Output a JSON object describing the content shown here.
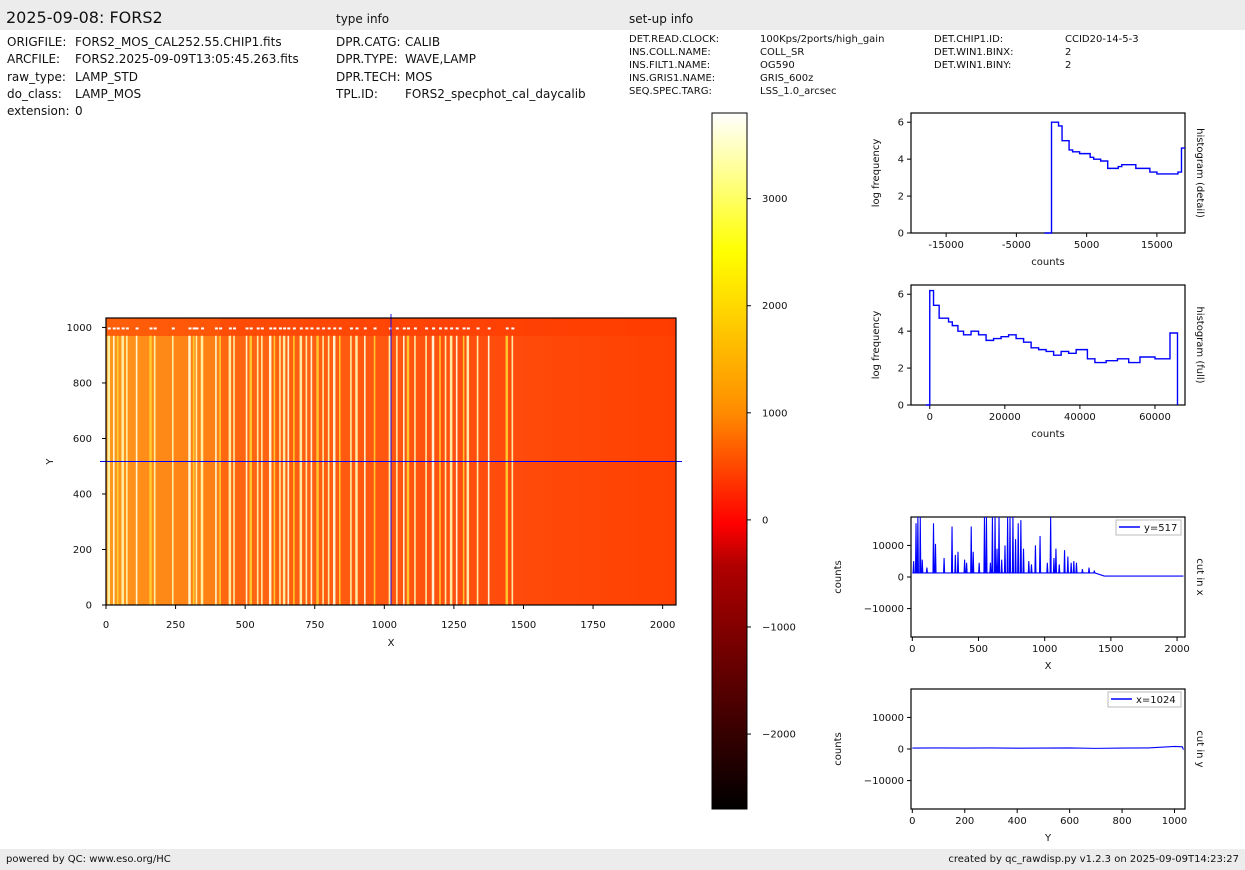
{
  "header": {
    "title": "2025-09-08: FORS2",
    "type_info": "type info",
    "setup_info": "set-up info"
  },
  "file_info": [
    {
      "key": "ORIGFILE:",
      "value": "FORS2_MOS_CAL252.55.CHIP1.fits"
    },
    {
      "key": "ARCFILE:",
      "value": "FORS2.2025-09-09T13:05:45.263.fits"
    },
    {
      "key": "raw_type:",
      "value": "LAMP_STD"
    },
    {
      "key": "do_class:",
      "value": "LAMP_MOS"
    },
    {
      "key": "extension:",
      "value": "0"
    }
  ],
  "type_info": [
    {
      "key": "DPR.CATG:",
      "value": "CALIB"
    },
    {
      "key": "DPR.TYPE:",
      "value": "WAVE,LAMP"
    },
    {
      "key": "DPR.TECH:",
      "value": "MOS"
    },
    {
      "key": "TPL.ID:",
      "value": "FORS2_specphot_cal_daycalib"
    }
  ],
  "setup_info_1": [
    {
      "key": "DET.READ.CLOCK:",
      "value": "100Kps/2ports/high_gain"
    },
    {
      "key": "INS.COLL.NAME:",
      "value": "COLL_SR"
    },
    {
      "key": "INS.FILT1.NAME:",
      "value": "OG590"
    },
    {
      "key": "INS.GRIS1.NAME:",
      "value": "GRIS_600z"
    },
    {
      "key": "SEQ.SPEC.TARG:",
      "value": "LSS_1.0_arcsec"
    }
  ],
  "setup_info_2": [
    {
      "key": "DET.CHIP1.ID:",
      "value": "CCID20-14-5-3"
    },
    {
      "key": "DET.WIN1.BINX:",
      "value": "2"
    },
    {
      "key": "DET.WIN1.BINY:",
      "value": "2"
    }
  ],
  "footer": {
    "left": "powered by QC: www.eso.org/HC",
    "right": "created by qc_rawdisp.py v1.2.3 on 2025-09-09T14:23:27"
  },
  "colors": {
    "line": "#0000ff",
    "bar_bg": "#ececec",
    "image_base": "#ff4500"
  },
  "chart_data": [
    {
      "type": "heatmap",
      "name": "image",
      "xlabel": "X",
      "ylabel": "Y",
      "xlim": [
        0,
        2048
      ],
      "ylim": [
        0,
        1034
      ],
      "xticks": [
        0,
        250,
        500,
        750,
        1000,
        1250,
        1500,
        1750,
        2000
      ],
      "yticks": [
        0,
        200,
        400,
        600,
        800,
        1000
      ],
      "crosshair": {
        "x": 1024,
        "y": 517
      },
      "colormap": "hot",
      "arc_lines_x": [
        10,
        28,
        42,
        60,
        75,
        110,
        160,
        175,
        240,
        300,
        315,
        325,
        345,
        395,
        410,
        445,
        460,
        505,
        520,
        545,
        560,
        590,
        605,
        625,
        640,
        655,
        675,
        700,
        720,
        738,
        760,
        780,
        800,
        820,
        840,
        880,
        900,
        930,
        965,
        1020,
        1045,
        1070,
        1085,
        1110,
        1150,
        1175,
        1200,
        1220,
        1240,
        1260,
        1285,
        1300,
        1335,
        1375,
        1440,
        1460
      ]
    },
    {
      "type": "colorbar",
      "name": "colorbar",
      "range": [
        -2700,
        3800
      ],
      "ticks": [
        -2000,
        -1000,
        0,
        1000,
        2000,
        3000
      ]
    },
    {
      "type": "line",
      "name": "histogram (detail)",
      "xlabel": "counts",
      "ylabel": "log frequency",
      "side_label": "histogram (detail)",
      "xlim": [
        -20000,
        19000
      ],
      "ylim": [
        0,
        6.5
      ],
      "xticks": [
        -15000,
        -5000,
        5000,
        15000
      ],
      "xtick_labels": [
        "-15000",
        "-5000",
        "5000",
        "15000"
      ],
      "yticks": [
        0,
        2,
        4,
        6
      ],
      "steps_x": [
        -1000,
        0,
        1000,
        1500,
        2500,
        3000,
        4000,
        5500,
        6000,
        7000,
        8000,
        9500,
        10000,
        11000,
        12000,
        13000,
        14000,
        15000,
        16000,
        17000,
        18000,
        18500,
        19000
      ],
      "steps_y": [
        0,
        6.0,
        5.8,
        5.0,
        4.5,
        4.4,
        4.3,
        4.1,
        4.0,
        3.9,
        3.5,
        3.6,
        3.7,
        3.7,
        3.5,
        3.5,
        3.3,
        3.2,
        3.2,
        3.2,
        3.3,
        4.6,
        4.6
      ]
    },
    {
      "type": "line",
      "name": "histogram (full)",
      "xlabel": "counts",
      "ylabel": "log frequency",
      "side_label": "histogram (full)",
      "xlim": [
        -5000,
        68000
      ],
      "ylim": [
        0,
        6.5
      ],
      "xticks": [
        0,
        20000,
        40000,
        60000
      ],
      "xtick_labels": [
        "0",
        "20000",
        "40000",
        "60000"
      ],
      "yticks": [
        0,
        2,
        4,
        6
      ],
      "steps_x": [
        -1000,
        0,
        1000,
        2500,
        5000,
        6000,
        7500,
        9000,
        11000,
        13000,
        15000,
        17000,
        19000,
        21000,
        23000,
        25000,
        27000,
        29000,
        31000,
        33000,
        35000,
        37000,
        39000,
        42000,
        44000,
        47000,
        50000,
        53000,
        56000,
        60000,
        64000,
        66000
      ],
      "steps_y": [
        0,
        6.2,
        5.4,
        4.7,
        4.5,
        4.3,
        4.0,
        3.8,
        4.0,
        3.8,
        3.5,
        3.6,
        3.7,
        3.8,
        3.6,
        3.4,
        3.1,
        3.0,
        2.9,
        2.7,
        2.9,
        2.8,
        3.0,
        2.5,
        2.3,
        2.4,
        2.5,
        2.3,
        2.6,
        2.5,
        3.9,
        0
      ]
    },
    {
      "type": "line",
      "name": "cut in x",
      "xlabel": "X",
      "ylabel": "counts",
      "side_label": "cut in x",
      "legend": "y=517",
      "xlim": [
        -10,
        2060
      ],
      "ylim": [
        -19000,
        19000
      ],
      "xticks": [
        0,
        500,
        1000,
        1500,
        2000
      ],
      "yticks": [
        -10000,
        0,
        10000
      ],
      "baseline": 1300,
      "peaks": [
        [
          10,
          5000
        ],
        [
          28,
          17000
        ],
        [
          42,
          19000
        ],
        [
          60,
          19000
        ],
        [
          75,
          5500
        ],
        [
          110,
          3000
        ],
        [
          160,
          17000
        ],
        [
          175,
          10500
        ],
        [
          240,
          6000
        ],
        [
          300,
          16000
        ],
        [
          325,
          7000
        ],
        [
          345,
          8000
        ],
        [
          395,
          5500
        ],
        [
          410,
          4500
        ],
        [
          445,
          16000
        ],
        [
          460,
          8000
        ],
        [
          505,
          4500
        ],
        [
          545,
          19000
        ],
        [
          560,
          19000
        ],
        [
          590,
          4500
        ],
        [
          605,
          19000
        ],
        [
          625,
          19000
        ],
        [
          640,
          9000
        ],
        [
          655,
          19000
        ],
        [
          675,
          5500
        ],
        [
          700,
          10000
        ],
        [
          720,
          19000
        ],
        [
          738,
          19000
        ],
        [
          760,
          19000
        ],
        [
          780,
          12000
        ],
        [
          800,
          17000
        ],
        [
          820,
          18000
        ],
        [
          840,
          9000
        ],
        [
          880,
          5000
        ],
        [
          900,
          4000
        ],
        [
          930,
          10000
        ],
        [
          965,
          13000
        ],
        [
          1020,
          4500
        ],
        [
          1045,
          19000
        ],
        [
          1070,
          6000
        ],
        [
          1085,
          9000
        ],
        [
          1110,
          4000
        ],
        [
          1150,
          8500
        ],
        [
          1175,
          6500
        ],
        [
          1200,
          4500
        ],
        [
          1220,
          5000
        ],
        [
          1240,
          4500
        ],
        [
          1285,
          2500
        ],
        [
          1335,
          3000
        ],
        [
          1375,
          2000
        ]
      ],
      "tail_level": 300
    },
    {
      "type": "line",
      "name": "cut in y",
      "xlabel": "Y",
      "ylabel": "counts",
      "side_label": "cut in y",
      "legend": "x=1024",
      "xlim": [
        -5,
        1040
      ],
      "ylim": [
        -19000,
        19000
      ],
      "xticks": [
        0,
        200,
        400,
        600,
        800,
        1000
      ],
      "yticks": [
        -10000,
        0,
        10000
      ],
      "x": [
        0,
        100,
        200,
        300,
        400,
        500,
        600,
        700,
        800,
        900,
        1000,
        1030,
        1034
      ],
      "y": [
        300,
        350,
        300,
        350,
        250,
        300,
        350,
        200,
        300,
        350,
        800,
        700,
        -200
      ]
    }
  ]
}
